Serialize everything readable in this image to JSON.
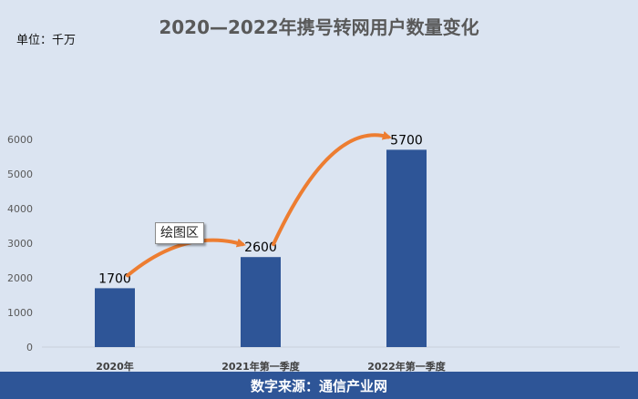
{
  "header": {
    "title": "2020—2022年携号转网用户数量变化",
    "unit_label": "单位：千万"
  },
  "tooltip": {
    "text": "绘图区"
  },
  "footer": {
    "source": "数字来源：通信产业网"
  },
  "colors": {
    "bar": "#2e5597",
    "arrow": "#ed7d31",
    "background": "#dbe4f1"
  },
  "chart_data": {
    "type": "bar",
    "title": "2020—2022年携号转网用户数量变化",
    "categories": [
      "2020年",
      "2021年第一季度",
      "2022年第一季度"
    ],
    "values": [
      1700,
      2600,
      5700
    ],
    "ylim": [
      0,
      6000
    ],
    "yticks": [
      0,
      1000,
      2000,
      3000,
      4000,
      5000,
      6000
    ],
    "grid": false,
    "legend": "none"
  }
}
